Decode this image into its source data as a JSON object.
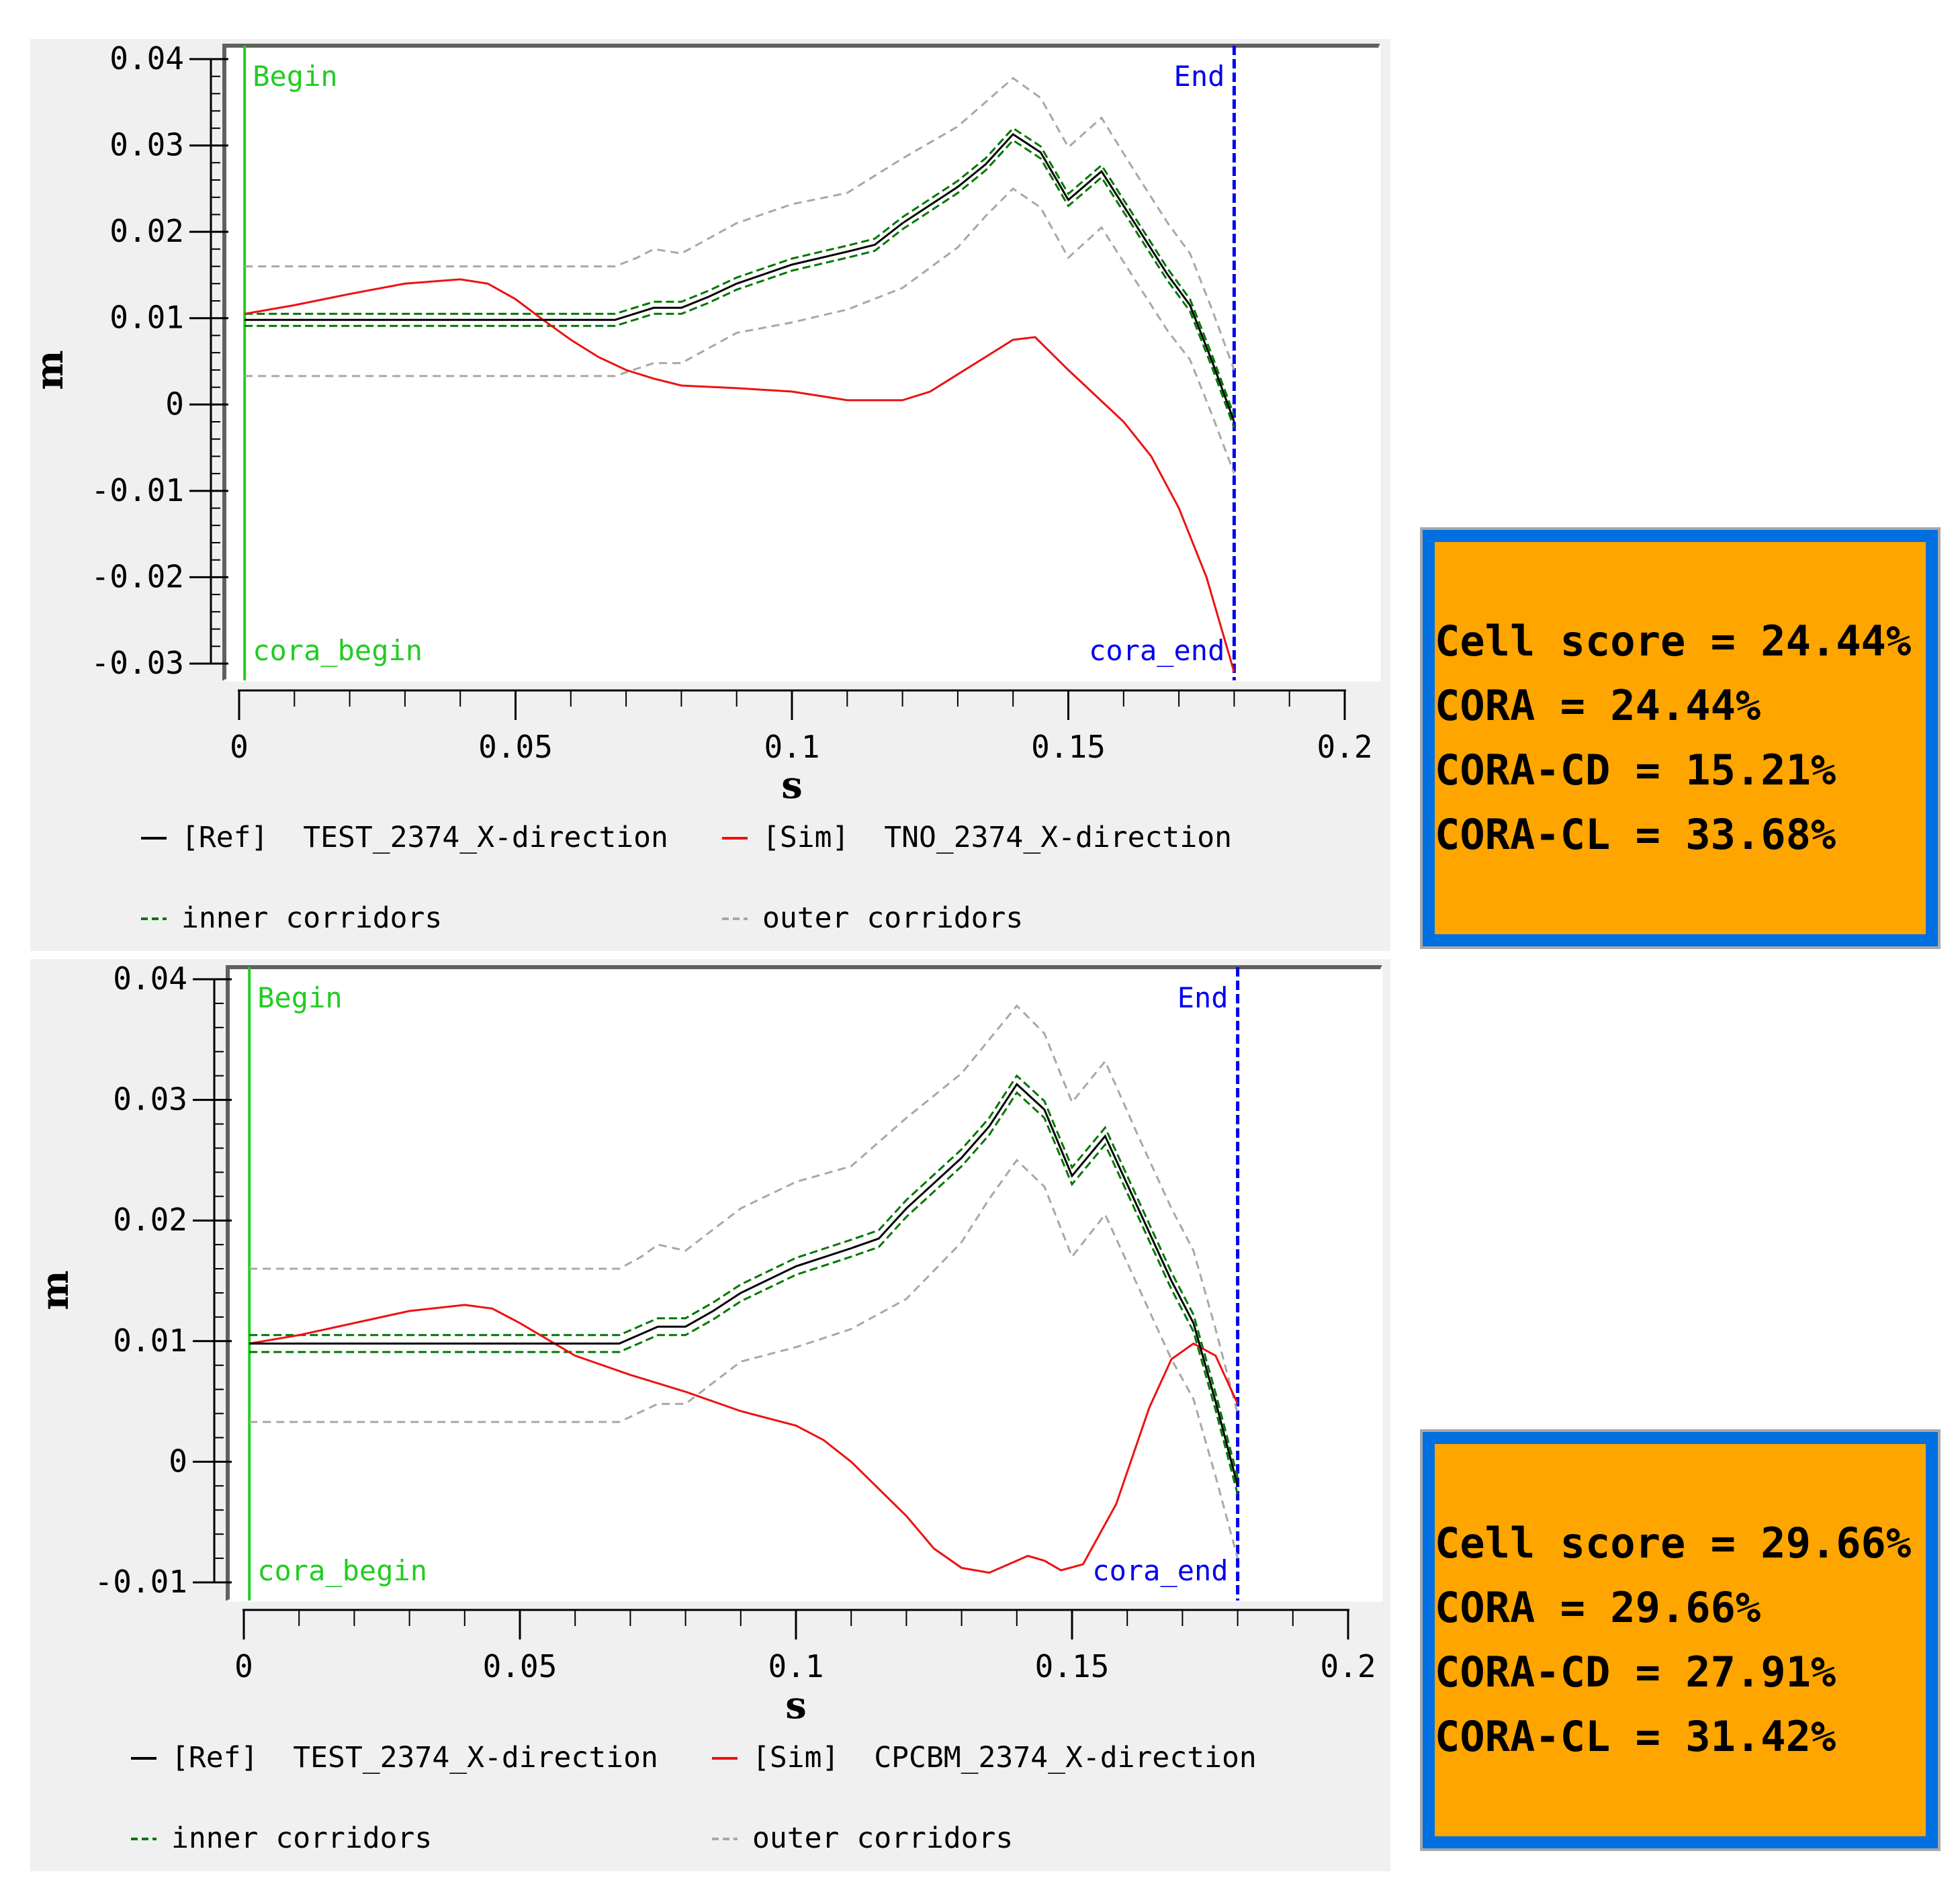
{
  "colors": {
    "ref": "#000000",
    "sim": "#ee1111",
    "inner": "#007700",
    "outer": "#a8a8a8",
    "begin": "#22cc22",
    "end": "#0000ee",
    "box_fill": "#ffa500",
    "box_border": "#0070e0"
  },
  "chart_data": [
    {
      "type": "line",
      "xlabel": "s",
      "ylabel": "m",
      "xlim": [
        0,
        0.2
      ],
      "ylim": [
        -0.03,
        0.04
      ],
      "xticks": [
        0,
        0.05,
        0.1,
        0.15,
        0.2
      ],
      "xtick_labels": [
        "0",
        "0.05",
        "0.1",
        "0.15",
        "0.2"
      ],
      "yticks": [
        0.04,
        0.03,
        0.02,
        0.01,
        0,
        -0.01,
        -0.02,
        -0.03
      ],
      "ytick_labels": [
        "0.04",
        "0.03",
        "0.02",
        "0.01",
        "0",
        "-0.01",
        "-0.02",
        "-0.03"
      ],
      "markers": {
        "begin_x": 0.001,
        "end_x": 0.18,
        "begin": "Begin",
        "end": "End",
        "cora_begin": "cora_begin",
        "cora_end": "cora_end"
      },
      "legend": {
        "ref": "[Ref]  TEST_2374_X-direction",
        "sim": "[Sim]  TNO_2374_X-direction",
        "inner": "inner corridors",
        "outer": "outer corridors"
      },
      "series": [
        {
          "name": "[Ref] TEST_2374_X-direction",
          "role": "ref",
          "x": [
            0.001,
            0.068,
            0.075,
            0.08,
            0.085,
            0.09,
            0.1,
            0.11,
            0.115,
            0.12,
            0.13,
            0.135,
            0.14,
            0.145,
            0.15,
            0.156,
            0.162,
            0.168,
            0.172,
            0.176,
            0.18
          ],
          "y": [
            0.0098,
            0.0098,
            0.0112,
            0.0112,
            0.0125,
            0.014,
            0.0162,
            0.0177,
            0.0185,
            0.021,
            0.0252,
            0.0278,
            0.0313,
            0.0292,
            0.0237,
            0.027,
            0.021,
            0.015,
            0.0115,
            0.005,
            -0.002
          ]
        },
        {
          "name": "[Sim] TNO_2374_X-direction",
          "role": "sim",
          "x": [
            0.001,
            0.01,
            0.02,
            0.03,
            0.04,
            0.045,
            0.05,
            0.055,
            0.06,
            0.065,
            0.07,
            0.075,
            0.08,
            0.09,
            0.1,
            0.105,
            0.11,
            0.12,
            0.125,
            0.13,
            0.135,
            0.14,
            0.144,
            0.15,
            0.155,
            0.16,
            0.165,
            0.17,
            0.175,
            0.18
          ],
          "y": [
            0.0105,
            0.0115,
            0.0128,
            0.014,
            0.0145,
            0.014,
            0.0122,
            0.0098,
            0.0075,
            0.0055,
            0.004,
            0.003,
            0.0022,
            0.0019,
            0.0015,
            0.001,
            0.0005,
            0.0005,
            0.0015,
            0.0035,
            0.0055,
            0.0075,
            0.0078,
            0.004,
            0.001,
            -0.002,
            -0.006,
            -0.012,
            -0.02,
            -0.031
          ]
        },
        {
          "name": "inner corridors (upper)",
          "role": "inner",
          "x": [
            0.001,
            0.068,
            0.075,
            0.08,
            0.085,
            0.09,
            0.1,
            0.11,
            0.115,
            0.12,
            0.13,
            0.135,
            0.14,
            0.145,
            0.15,
            0.156,
            0.162,
            0.168,
            0.172,
            0.176,
            0.18
          ],
          "y": [
            0.0105,
            0.0105,
            0.0119,
            0.0119,
            0.0132,
            0.0147,
            0.0169,
            0.0184,
            0.0192,
            0.0217,
            0.0259,
            0.0285,
            0.032,
            0.0299,
            0.0244,
            0.0277,
            0.0217,
            0.0157,
            0.0122,
            0.0057,
            -0.0013
          ]
        },
        {
          "name": "inner corridors (lower)",
          "role": "inner",
          "x": [
            0.001,
            0.068,
            0.075,
            0.08,
            0.085,
            0.09,
            0.1,
            0.11,
            0.115,
            0.12,
            0.13,
            0.135,
            0.14,
            0.145,
            0.15,
            0.156,
            0.162,
            0.168,
            0.172,
            0.176,
            0.18
          ],
          "y": [
            0.0091,
            0.0091,
            0.0105,
            0.0105,
            0.0118,
            0.0133,
            0.0155,
            0.017,
            0.0178,
            0.0203,
            0.0245,
            0.0271,
            0.0306,
            0.0285,
            0.023,
            0.0263,
            0.0203,
            0.0143,
            0.0108,
            0.0043,
            -0.0027
          ]
        },
        {
          "name": "outer corridors (upper)",
          "role": "outer",
          "x": [
            0.001,
            0.068,
            0.072,
            0.075,
            0.08,
            0.09,
            0.1,
            0.11,
            0.12,
            0.13,
            0.135,
            0.14,
            0.145,
            0.15,
            0.156,
            0.162,
            0.168,
            0.172,
            0.176,
            0.18
          ],
          "y": [
            0.016,
            0.016,
            0.017,
            0.018,
            0.0175,
            0.021,
            0.0232,
            0.0245,
            0.0285,
            0.0322,
            0.035,
            0.0378,
            0.0355,
            0.0298,
            0.0332,
            0.027,
            0.021,
            0.0175,
            0.011,
            0.004
          ]
        },
        {
          "name": "outer corridors (lower)",
          "role": "outer",
          "x": [
            0.001,
            0.068,
            0.075,
            0.08,
            0.09,
            0.1,
            0.11,
            0.12,
            0.13,
            0.135,
            0.14,
            0.145,
            0.15,
            0.156,
            0.162,
            0.168,
            0.172,
            0.176,
            0.18
          ],
          "y": [
            0.0033,
            0.0033,
            0.0048,
            0.0048,
            0.0083,
            0.0095,
            0.011,
            0.0135,
            0.0182,
            0.0218,
            0.025,
            0.0228,
            0.017,
            0.0205,
            0.0145,
            0.0085,
            0.0052,
            -0.0012,
            -0.008
          ]
        }
      ]
    },
    {
      "type": "line",
      "xlabel": "s",
      "ylabel": "m",
      "xlim": [
        0,
        0.2
      ],
      "ylim": [
        -0.01,
        0.04
      ],
      "xticks": [
        0,
        0.05,
        0.1,
        0.15,
        0.2
      ],
      "xtick_labels": [
        "0",
        "0.05",
        "0.1",
        "0.15",
        "0.2"
      ],
      "yticks": [
        0.04,
        0.03,
        0.02,
        0.01,
        0,
        -0.01
      ],
      "ytick_labels": [
        "0.04",
        "0.03",
        "0.02",
        "0.01",
        "0",
        "-0.01"
      ],
      "markers": {
        "begin_x": 0.001,
        "end_x": 0.18,
        "begin": "Begin",
        "end": "End",
        "cora_begin": "cora_begin",
        "cora_end": "cora_end"
      },
      "legend": {
        "ref": "[Ref]  TEST_2374_X-direction",
        "sim": "[Sim]  CPCBM_2374_X-direction",
        "inner": "inner corridors",
        "outer": "outer corridors"
      },
      "series": [
        {
          "name": "[Ref] TEST_2374_X-direction",
          "role": "ref",
          "x": [
            0.001,
            0.068,
            0.075,
            0.08,
            0.085,
            0.09,
            0.1,
            0.11,
            0.115,
            0.12,
            0.13,
            0.135,
            0.14,
            0.145,
            0.15,
            0.156,
            0.162,
            0.168,
            0.172,
            0.176,
            0.18
          ],
          "y": [
            0.0098,
            0.0098,
            0.0112,
            0.0112,
            0.0125,
            0.014,
            0.0162,
            0.0177,
            0.0185,
            0.021,
            0.0252,
            0.0278,
            0.0313,
            0.0292,
            0.0237,
            0.027,
            0.021,
            0.015,
            0.0115,
            0.005,
            -0.002
          ]
        },
        {
          "name": "[Sim] CPCBM_2374_X-direction",
          "role": "sim",
          "x": [
            0.001,
            0.01,
            0.02,
            0.03,
            0.04,
            0.045,
            0.05,
            0.06,
            0.07,
            0.08,
            0.09,
            0.1,
            0.105,
            0.11,
            0.12,
            0.125,
            0.13,
            0.135,
            0.14,
            0.142,
            0.145,
            0.148,
            0.152,
            0.158,
            0.164,
            0.168,
            0.172,
            0.176,
            0.18
          ],
          "y": [
            0.0098,
            0.0105,
            0.0115,
            0.0125,
            0.013,
            0.0127,
            0.0115,
            0.0088,
            0.0072,
            0.0058,
            0.0042,
            0.003,
            0.0018,
            0.0,
            -0.0045,
            -0.0072,
            -0.0088,
            -0.0092,
            -0.0082,
            -0.0078,
            -0.0082,
            -0.009,
            -0.0085,
            -0.0035,
            0.0045,
            0.0085,
            0.0098,
            0.0088,
            0.0048
          ]
        },
        {
          "name": "inner corridors (upper)",
          "role": "inner",
          "x": [
            0.001,
            0.068,
            0.075,
            0.08,
            0.085,
            0.09,
            0.1,
            0.11,
            0.115,
            0.12,
            0.13,
            0.135,
            0.14,
            0.145,
            0.15,
            0.156,
            0.162,
            0.168,
            0.172,
            0.176,
            0.18
          ],
          "y": [
            0.0105,
            0.0105,
            0.0119,
            0.0119,
            0.0132,
            0.0147,
            0.0169,
            0.0184,
            0.0192,
            0.0217,
            0.0259,
            0.0285,
            0.032,
            0.0299,
            0.0244,
            0.0277,
            0.0217,
            0.0157,
            0.0122,
            0.0057,
            -0.0013
          ]
        },
        {
          "name": "inner corridors (lower)",
          "role": "inner",
          "x": [
            0.001,
            0.068,
            0.075,
            0.08,
            0.085,
            0.09,
            0.1,
            0.11,
            0.115,
            0.12,
            0.13,
            0.135,
            0.14,
            0.145,
            0.15,
            0.156,
            0.162,
            0.168,
            0.172,
            0.176,
            0.18
          ],
          "y": [
            0.0091,
            0.0091,
            0.0105,
            0.0105,
            0.0118,
            0.0133,
            0.0155,
            0.017,
            0.0178,
            0.0203,
            0.0245,
            0.0271,
            0.0306,
            0.0285,
            0.023,
            0.0263,
            0.0203,
            0.0143,
            0.0108,
            0.0043,
            -0.0027
          ]
        },
        {
          "name": "outer corridors (upper)",
          "role": "outer",
          "x": [
            0.001,
            0.068,
            0.072,
            0.075,
            0.08,
            0.09,
            0.1,
            0.11,
            0.12,
            0.13,
            0.135,
            0.14,
            0.145,
            0.15,
            0.156,
            0.162,
            0.168,
            0.172,
            0.176,
            0.18
          ],
          "y": [
            0.016,
            0.016,
            0.017,
            0.018,
            0.0175,
            0.021,
            0.0232,
            0.0245,
            0.0285,
            0.0322,
            0.035,
            0.0378,
            0.0355,
            0.0298,
            0.0332,
            0.027,
            0.021,
            0.0175,
            0.011,
            0.004
          ]
        },
        {
          "name": "outer corridors (lower)",
          "role": "outer",
          "x": [
            0.001,
            0.068,
            0.075,
            0.08,
            0.09,
            0.1,
            0.11,
            0.12,
            0.13,
            0.135,
            0.14,
            0.145,
            0.15,
            0.156,
            0.162,
            0.168,
            0.172,
            0.176,
            0.18
          ],
          "y": [
            0.0033,
            0.0033,
            0.0048,
            0.0048,
            0.0083,
            0.0095,
            0.011,
            0.0135,
            0.0182,
            0.0218,
            0.025,
            0.0228,
            0.017,
            0.0205,
            0.0145,
            0.0085,
            0.0052,
            -0.0012,
            -0.008
          ]
        }
      ]
    }
  ],
  "scores": [
    {
      "cell": "Cell score = 24.44%",
      "cora": "CORA = 24.44%",
      "cd": "CORA-CD = 15.21%",
      "cl": "CORA-CL = 33.68%"
    },
    {
      "cell": "Cell score = 29.66%",
      "cora": "CORA = 29.66%",
      "cd": "CORA-CD = 27.91%",
      "cl": "CORA-CL = 31.42%"
    }
  ]
}
